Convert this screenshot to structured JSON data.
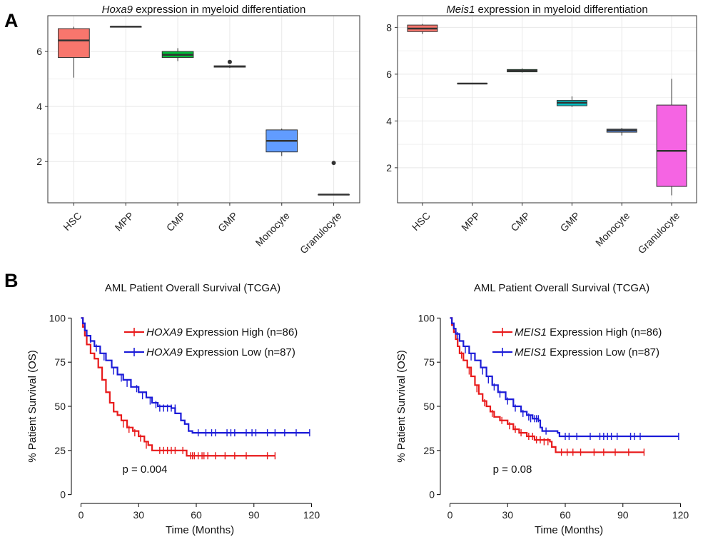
{
  "panels": {
    "a": "A",
    "b": "B"
  },
  "chart_data": [
    {
      "type": "box",
      "title_italic": "Hoxa9",
      "title_rest": " expression in myeloid differentiation",
      "categories": [
        "HSC",
        "MPP",
        "CMP",
        "GMP",
        "Monocyte",
        "Granulocyte"
      ],
      "ylim": [
        0.5,
        7.3
      ],
      "yticks": [
        2,
        4,
        6
      ],
      "grid": true,
      "boxes": [
        {
          "min": 5.05,
          "q1": 5.78,
          "median": 6.4,
          "q3": 6.83,
          "max": 6.9,
          "outliers": [],
          "color": "#f8766d"
        },
        {
          "min": 6.9,
          "q1": 6.9,
          "median": 6.9,
          "q3": 6.9,
          "max": 6.9,
          "outliers": [],
          "color": "#b79f00"
        },
        {
          "min": 5.65,
          "q1": 5.78,
          "median": 5.88,
          "q3": 6.0,
          "max": 6.12,
          "outliers": [],
          "color": "#00ba38"
        },
        {
          "min": 5.4,
          "q1": 5.43,
          "median": 5.45,
          "q3": 5.48,
          "max": 5.5,
          "outliers": [
            5.62
          ],
          "color": "#00bfc4"
        },
        {
          "min": 2.2,
          "q1": 2.35,
          "median": 2.75,
          "q3": 3.15,
          "max": 3.2,
          "outliers": [],
          "color": "#619cff"
        },
        {
          "min": 0.8,
          "q1": 0.8,
          "median": 0.8,
          "q3": 0.8,
          "max": 0.8,
          "outliers": [
            1.95
          ],
          "color": "#f564e3"
        }
      ]
    },
    {
      "type": "box",
      "title_italic": "Meis1",
      "title_rest": " expression in myeloid differentiation",
      "categories": [
        "HSC",
        "MPP",
        "CMP",
        "GMP",
        "Monocyte",
        "Granulocyte"
      ],
      "ylim": [
        0.5,
        8.5
      ],
      "yticks": [
        2,
        4,
        6,
        8
      ],
      "grid": true,
      "boxes": [
        {
          "min": 7.72,
          "q1": 7.82,
          "median": 7.95,
          "q3": 8.1,
          "max": 8.15,
          "outliers": [],
          "color": "#f8766d"
        },
        {
          "min": 5.6,
          "q1": 5.6,
          "median": 5.6,
          "q3": 5.6,
          "max": 5.6,
          "outliers": [],
          "color": "#b79f00"
        },
        {
          "min": 6.07,
          "q1": 6.1,
          "median": 6.15,
          "q3": 6.2,
          "max": 6.25,
          "outliers": [],
          "color": "#00ba38"
        },
        {
          "min": 4.6,
          "q1": 4.65,
          "median": 4.78,
          "q3": 4.88,
          "max": 5.05,
          "outliers": [],
          "color": "#00bfc4"
        },
        {
          "min": 3.38,
          "q1": 3.52,
          "median": 3.6,
          "q3": 3.65,
          "max": 3.7,
          "outliers": [],
          "color": "#619cff"
        },
        {
          "min": 0.82,
          "q1": 1.2,
          "median": 2.72,
          "q3": 4.68,
          "max": 5.8,
          "outliers": [],
          "color": "#f564e3"
        }
      ]
    },
    {
      "type": "line",
      "subtype": "kaplan-meier",
      "title": "AML Patient Overall Survival (TCGA)",
      "xlabel": "Time (Months)",
      "ylabel": "% Patient Survival (OS)",
      "xlim": [
        -5,
        125
      ],
      "ylim": [
        -5,
        105
      ],
      "xticks": [
        0,
        30,
        60,
        90,
        120
      ],
      "yticks": [
        0,
        25,
        50,
        75,
        100
      ],
      "annotation": "p = 0.004",
      "legend_position": "top-right",
      "series": [
        {
          "name_italic": "HOXA9",
          "name_rest": " Expression High (n=86)",
          "color": "#e8191a",
          "steps": [
            [
              0,
              100
            ],
            [
              1,
              95
            ],
            [
              2,
              90
            ],
            [
              3,
              85
            ],
            [
              5,
              80
            ],
            [
              7,
              77
            ],
            [
              9,
              72
            ],
            [
              11,
              65
            ],
            [
              13,
              58
            ],
            [
              15,
              52
            ],
            [
              17,
              47
            ],
            [
              19,
              45
            ],
            [
              21,
              42
            ],
            [
              24,
              38
            ],
            [
              27,
              36
            ],
            [
              30,
              33
            ],
            [
              33,
              30
            ],
            [
              35,
              28
            ],
            [
              37,
              25
            ],
            [
              55,
              22
            ],
            [
              101,
              22
            ]
          ],
          "censors": [
            [
              22,
              40
            ],
            [
              25,
              37
            ],
            [
              28,
              35
            ],
            [
              31,
              32
            ],
            [
              34,
              28
            ],
            [
              41,
              25
            ],
            [
              43,
              25
            ],
            [
              45,
              25
            ],
            [
              47,
              25
            ],
            [
              49,
              25
            ],
            [
              53,
              25
            ],
            [
              57,
              22
            ],
            [
              58,
              22
            ],
            [
              59,
              22
            ],
            [
              61,
              22
            ],
            [
              63,
              22
            ],
            [
              64,
              22
            ],
            [
              66,
              22
            ],
            [
              70,
              22
            ],
            [
              75,
              22
            ],
            [
              80,
              22
            ],
            [
              86,
              22
            ],
            [
              97,
              22
            ],
            [
              101,
              22
            ]
          ]
        },
        {
          "name_italic": "HOXA9",
          "name_rest": " Expression Low (n=87)",
          "color": "#1b1bd8",
          "steps": [
            [
              0,
              100
            ],
            [
              1,
              97
            ],
            [
              2,
              93
            ],
            [
              3,
              90
            ],
            [
              5,
              87
            ],
            [
              7,
              84
            ],
            [
              10,
              80
            ],
            [
              13,
              76
            ],
            [
              16,
              72
            ],
            [
              19,
              68
            ],
            [
              22,
              65
            ],
            [
              26,
              61
            ],
            [
              30,
              58
            ],
            [
              34,
              55
            ],
            [
              37,
              52
            ],
            [
              40,
              50
            ],
            [
              47,
              49
            ],
            [
              49,
              46
            ],
            [
              52,
              42
            ],
            [
              54,
              40
            ],
            [
              56,
              36
            ],
            [
              58,
              35
            ],
            [
              119,
              35
            ]
          ],
          "censors": [
            [
              5,
              88
            ],
            [
              8,
              83
            ],
            [
              12,
              78
            ],
            [
              17,
              70
            ],
            [
              21,
              66
            ],
            [
              24,
              63
            ],
            [
              29,
              60
            ],
            [
              32,
              56
            ],
            [
              36,
              53
            ],
            [
              39,
              51
            ],
            [
              41,
              49
            ],
            [
              43,
              49
            ],
            [
              45,
              49
            ],
            [
              47,
              49
            ],
            [
              49,
              49
            ],
            [
              61,
              35
            ],
            [
              65,
              35
            ],
            [
              68,
              35
            ],
            [
              70,
              35
            ],
            [
              76,
              35
            ],
            [
              78,
              35
            ],
            [
              80,
              35
            ],
            [
              86,
              35
            ],
            [
              89,
              35
            ],
            [
              91,
              35
            ],
            [
              97,
              35
            ],
            [
              101,
              35
            ],
            [
              106,
              35
            ],
            [
              112,
              35
            ],
            [
              119,
              35
            ]
          ]
        }
      ]
    },
    {
      "type": "line",
      "subtype": "kaplan-meier",
      "title": "AML Patient Overall Survival (TCGA)",
      "xlabel": "Time (Months)",
      "ylabel": "% Patient Survival (OS)",
      "xlim": [
        -5,
        125
      ],
      "ylim": [
        -5,
        105
      ],
      "xticks": [
        0,
        30,
        60,
        90,
        120
      ],
      "yticks": [
        0,
        25,
        50,
        75,
        100
      ],
      "annotation": "p = 0.08",
      "legend_position": "top-right",
      "series": [
        {
          "name_italic": "MEIS1",
          "name_rest": " Expression High (n=86)",
          "color": "#e8191a",
          "steps": [
            [
              0,
              100
            ],
            [
              1,
              96
            ],
            [
              2,
              92
            ],
            [
              3,
              88
            ],
            [
              4,
              84
            ],
            [
              5,
              80
            ],
            [
              7,
              76
            ],
            [
              9,
              72
            ],
            [
              11,
              67
            ],
            [
              13,
              62
            ],
            [
              15,
              57
            ],
            [
              17,
              53
            ],
            [
              19,
              50
            ],
            [
              21,
              47
            ],
            [
              23,
              44
            ],
            [
              26,
              42
            ],
            [
              30,
              40
            ],
            [
              33,
              37
            ],
            [
              36,
              35
            ],
            [
              40,
              33
            ],
            [
              44,
              31
            ],
            [
              52,
              30
            ],
            [
              53,
              27
            ],
            [
              55,
              24
            ],
            [
              101,
              24
            ]
          ],
          "censors": [
            [
              6,
              79
            ],
            [
              10,
              70
            ],
            [
              14,
              60
            ],
            [
              18,
              52
            ],
            [
              22,
              46
            ],
            [
              27,
              42
            ],
            [
              31,
              39
            ],
            [
              34,
              37
            ],
            [
              37,
              35
            ],
            [
              41,
              33
            ],
            [
              43,
              33
            ],
            [
              45,
              31
            ],
            [
              47,
              31
            ],
            [
              49,
              30
            ],
            [
              51,
              30
            ],
            [
              58,
              24
            ],
            [
              61,
              24
            ],
            [
              64,
              24
            ],
            [
              68,
              24
            ],
            [
              75,
              24
            ],
            [
              80,
              24
            ],
            [
              86,
              24
            ],
            [
              93,
              24
            ],
            [
              101,
              24
            ]
          ]
        },
        {
          "name_italic": "MEIS1",
          "name_rest": " Expression Low (n=87)",
          "color": "#1b1bd8",
          "steps": [
            [
              0,
              100
            ],
            [
              1,
              97
            ],
            [
              2,
              94
            ],
            [
              3,
              91
            ],
            [
              5,
              87
            ],
            [
              7,
              84
            ],
            [
              10,
              80
            ],
            [
              13,
              76
            ],
            [
              16,
              72
            ],
            [
              19,
              67
            ],
            [
              22,
              62
            ],
            [
              25,
              58
            ],
            [
              29,
              54
            ],
            [
              33,
              50
            ],
            [
              37,
              47
            ],
            [
              40,
              45
            ],
            [
              43,
              43
            ],
            [
              46,
              42
            ],
            [
              47,
              38
            ],
            [
              48,
              36
            ],
            [
              56,
              35
            ],
            [
              57,
              33
            ],
            [
              119,
              33
            ]
          ],
          "censors": [
            [
              4,
              90
            ],
            [
              8,
              82
            ],
            [
              11,
              78
            ],
            [
              17,
              70
            ],
            [
              20,
              65
            ],
            [
              23,
              61
            ],
            [
              26,
              57
            ],
            [
              30,
              53
            ],
            [
              34,
              49
            ],
            [
              38,
              46
            ],
            [
              41,
              44
            ],
            [
              42,
              43
            ],
            [
              44,
              43
            ],
            [
              45,
              43
            ],
            [
              46,
              43
            ],
            [
              50,
              36
            ],
            [
              60,
              33
            ],
            [
              62,
              33
            ],
            [
              66,
              33
            ],
            [
              73,
              33
            ],
            [
              78,
              33
            ],
            [
              80,
              33
            ],
            [
              82,
              33
            ],
            [
              84,
              33
            ],
            [
              87,
              33
            ],
            [
              94,
              33
            ],
            [
              96,
              33
            ],
            [
              99,
              33
            ],
            [
              119,
              33
            ]
          ]
        }
      ]
    }
  ]
}
